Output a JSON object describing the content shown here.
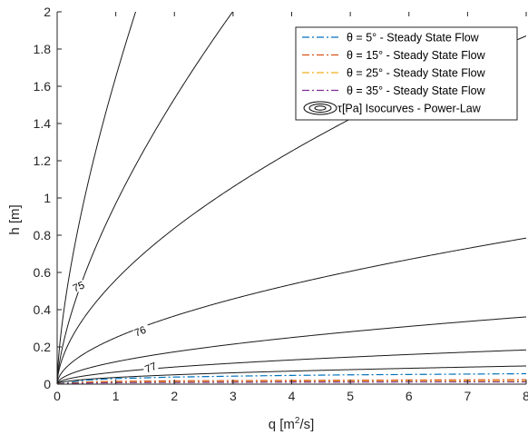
{
  "chart_data": {
    "type": "line",
    "xlabel_main": "q [m",
    "xlabel_sup": "2",
    "xlabel_end": "/s]",
    "ylabel": "h [m]",
    "xlim": [
      0,
      8
    ],
    "ylim": [
      0,
      2
    ],
    "xticks": [
      "0",
      "1",
      "2",
      "3",
      "4",
      "5",
      "6",
      "7",
      "8"
    ],
    "yticks": [
      "0",
      "0.2",
      "0.4",
      "0.6",
      "0.8",
      "1",
      "1.2",
      "1.4",
      "1.6",
      "1.8",
      "2"
    ],
    "grid": false,
    "legend_position": "top-right",
    "legend": [
      {
        "label": "θ = 5° - Steady State Flow",
        "color": "#0072BD",
        "style": "dash-dot"
      },
      {
        "label": "θ = 15° - Steady State Flow",
        "color": "#D95319",
        "style": "dash-dot"
      },
      {
        "label": "θ = 25° - Steady State Flow",
        "color": "#EDB120",
        "style": "dash-dot"
      },
      {
        "label": "θ = 35° - Steady State Flow",
        "color": "#7E2F8E",
        "style": "dash-dot"
      },
      {
        "label": "τ[Pa] Isocurves - Power-Law",
        "color": "#000000",
        "style": "contour"
      }
    ],
    "steady_state_series": [
      {
        "theta": 5,
        "color": "#0072BD",
        "x": [
          0,
          0.5,
          1,
          2,
          3,
          4,
          5,
          6,
          7,
          8
        ],
        "y": [
          0,
          0.022,
          0.03,
          0.038,
          0.043,
          0.047,
          0.05,
          0.052,
          0.054,
          0.056
        ]
      },
      {
        "theta": 15,
        "color": "#D95319",
        "x": [
          0,
          0.5,
          1,
          2,
          3,
          4,
          5,
          6,
          7,
          8
        ],
        "y": [
          0,
          0.012,
          0.015,
          0.018,
          0.019,
          0.02,
          0.021,
          0.022,
          0.023,
          0.024
        ]
      },
      {
        "theta": 25,
        "color": "#EDB120",
        "x": [
          0,
          0.5,
          1,
          2,
          3,
          4,
          5,
          6,
          7,
          8
        ],
        "y": [
          0,
          0.008,
          0.01,
          0.012,
          0.013,
          0.014,
          0.015,
          0.015,
          0.016,
          0.016
        ]
      },
      {
        "theta": 35,
        "color": "#7E2F8E",
        "x": [
          0,
          0.5,
          1,
          2,
          3,
          4,
          5,
          6,
          7,
          8
        ],
        "y": [
          0,
          0.006,
          0.008,
          0.009,
          0.01,
          0.011,
          0.011,
          0.012,
          0.012,
          0.012
        ]
      }
    ],
    "isocurves": [
      {
        "coef": 1.65,
        "exp": 0.66,
        "label": ""
      },
      {
        "coef": 0.97,
        "exp": 0.66,
        "label": ""
      },
      {
        "coef": 0.56,
        "exp": 0.58,
        "label": "75"
      },
      {
        "coef": 0.25,
        "exp": 0.55,
        "label": "76"
      },
      {
        "coef": 0.12,
        "exp": 0.53,
        "label": ""
      },
      {
        "coef": 0.065,
        "exp": 0.5,
        "label": "77"
      },
      {
        "coef": 0.036,
        "exp": 0.48,
        "label": ""
      }
    ],
    "contour_labels": [
      {
        "text": "75",
        "x": 0.37,
        "y": 0.52
      },
      {
        "text": "76",
        "x": 1.42,
        "y": 0.28
      },
      {
        "text": "77",
        "x": 1.6,
        "y": 0.085
      }
    ]
  }
}
